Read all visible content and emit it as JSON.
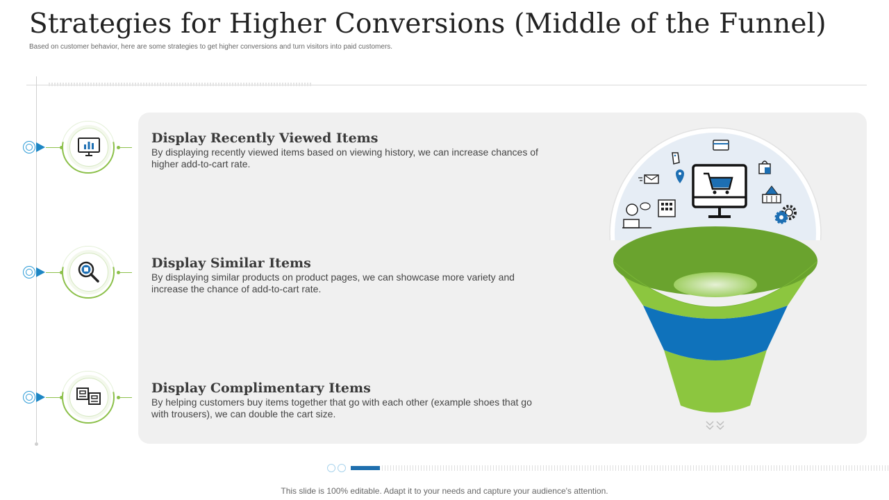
{
  "slide": {
    "title": "Strategies for Higher Conversions (Middle of the Funnel)",
    "subtitle": "Based on customer behavior, here are some strategies to get higher conversions and turn visitors into paid customers.",
    "footer": "This slide is 100% editable. Adapt it to your needs and capture your audience's attention."
  },
  "strategies": [
    {
      "heading": "Display Recently Viewed Items",
      "text": "By displaying recently viewed items based on viewing history, we can increase chances of higher add-to-cart rate.",
      "icon": "monitor-chart-icon"
    },
    {
      "heading": "Display Similar Items",
      "text": "By displaying similar products on product pages, we can showcase more variety and increase the chance of add-to-cart rate.",
      "icon": "magnifier-icon"
    },
    {
      "heading": "Display Complimentary Items",
      "text": "By helping customers buy items together that go with each other (example shoes that go with trousers), we can double the cart size.",
      "icon": "product-boxes-icon"
    }
  ],
  "colors": {
    "green_light": "#8cc63f",
    "green_dark": "#6aa32e",
    "blue": "#0f72bb",
    "accent_blue": "#1d86c4"
  }
}
